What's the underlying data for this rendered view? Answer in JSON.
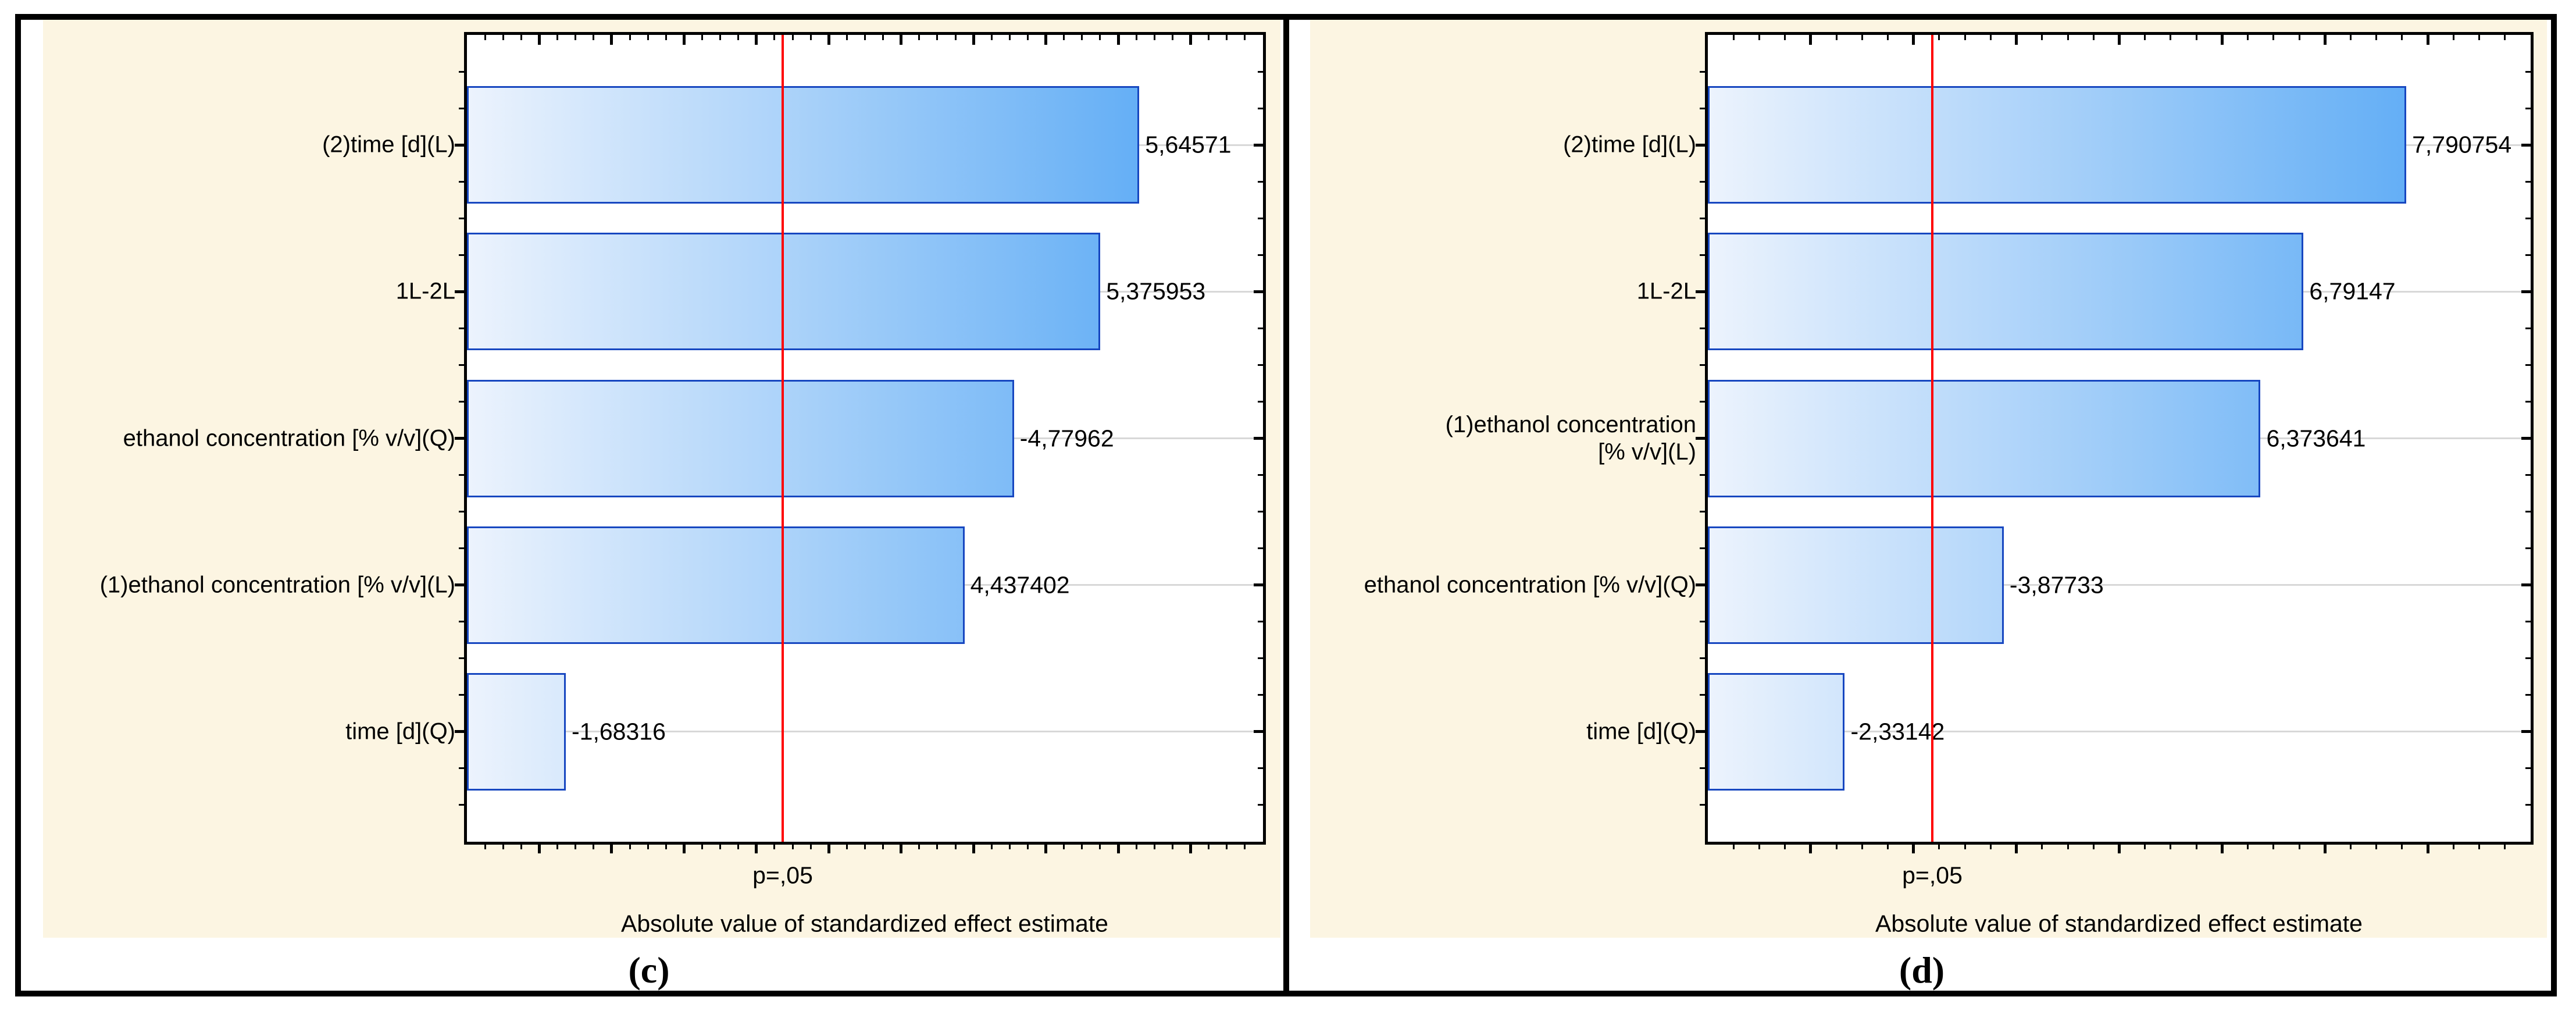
{
  "figure": {
    "description": "Two Pareto charts of standardized effect estimates, panels (c) and (d)"
  },
  "colors": {
    "panel_background": "#FCF5E2",
    "plot_background": "#FFFFFF",
    "bar_gradient_start": "#ECF3FD",
    "bar_gradient_end": "#4BA2F4",
    "bar_border": "#1747C0",
    "significance_line": "#FF0000",
    "gridline": "#D8D8D8",
    "axis": "#000000",
    "text": "#000000"
  },
  "chart_data": [
    {
      "type": "bar",
      "orientation": "horizontal",
      "caption": "(c)",
      "xlabel": "Absolute value of standardized effect estimate",
      "p_line_label": "p=,05",
      "p_line_value": 3.182,
      "categories": [
        "(2)time [d](L)",
        "1L-2L",
        "ethanol concentration [% v/v](Q)",
        "(1)ethanol concentration [% v/v](L)",
        "time [d](Q)"
      ],
      "values": [
        5.64571,
        5.375953,
        -4.77962,
        4.437402,
        -1.68316
      ],
      "value_labels": [
        "5,64571",
        "5,375953",
        "-4,77962",
        "4,437402",
        "-1,68316"
      ],
      "xlim": [
        1.0,
        6.5
      ],
      "x_major_step": 0.5,
      "x_minor_per_major": 4,
      "grid": "horizontal category gridlines",
      "legend": "none"
    },
    {
      "type": "bar",
      "orientation": "horizontal",
      "caption": "(d)",
      "xlabel": "Absolute value of standardized effect estimate",
      "p_line_label": "p=,05",
      "p_line_value": 3.182,
      "categories": [
        "(2)time [d](L)",
        "1L-2L",
        "(1)ethanol concentration\n[% v/v](L)",
        "ethanol concentration [% v/v](Q)",
        "time [d](Q)"
      ],
      "values": [
        7.790754,
        6.79147,
        6.373641,
        -3.87733,
        -2.33142
      ],
      "value_labels": [
        "7,790754",
        "6,79147",
        "6,373641",
        "-3,87733",
        "-2,33142"
      ],
      "xlim": [
        1.0,
        9.0
      ],
      "x_major_step": 1.0,
      "x_minor_per_major": 4,
      "grid": "horizontal category gridlines",
      "legend": "none"
    }
  ]
}
